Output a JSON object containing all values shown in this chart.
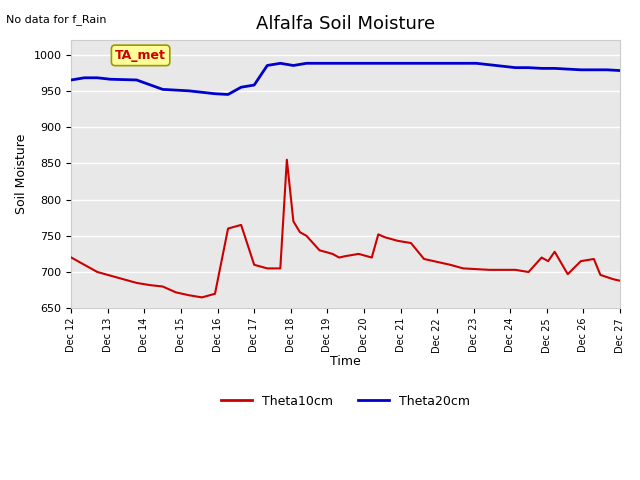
{
  "title": "Alfalfa Soil Moisture",
  "xlabel": "Time",
  "ylabel": "Soil Moisture",
  "top_left_text": "No data for f_Rain",
  "annotation_box": "TA_met",
  "ylim": [
    650,
    1020
  ],
  "yticks": [
    650,
    700,
    750,
    800,
    850,
    900,
    950,
    1000
  ],
  "background_color": "#e8e8e8",
  "line1_color": "#cc0000",
  "line2_color": "#0000cc",
  "legend_entries": [
    "Theta10cm",
    "Theta20cm"
  ],
  "xtick_labels": [
    "Dec 12",
    "Dec 13",
    "Dec 14",
    "Dec 15",
    "Dec 16",
    "Dec 17",
    "Dec 18",
    "Dec 19",
    "Dec 20",
    "Dec 21",
    "Dec 22",
    "Dec 23",
    "Dec 24",
    "Dec 25",
    "Dec 26",
    "Dec 27"
  ],
  "theta10_x": [
    0,
    0.1,
    0.2,
    0.3,
    0.4,
    0.5,
    0.6,
    0.7,
    0.8,
    0.9,
    1.0,
    1.1,
    1.2,
    1.3,
    1.4,
    1.5,
    1.6,
    1.65,
    1.7,
    1.75,
    1.8,
    1.9,
    2.0,
    2.05,
    2.1,
    2.2,
    2.3,
    2.35,
    2.4,
    2.5,
    2.6,
    2.7,
    2.8,
    2.85,
    2.9,
    3.0,
    3.1,
    3.2,
    3.3,
    3.4,
    3.5,
    3.6,
    3.65,
    3.7,
    3.8,
    3.9,
    4.0,
    4.05,
    4.1,
    4.15,
    4.2
  ],
  "theta10_y": [
    720,
    710,
    700,
    695,
    690,
    685,
    682,
    680,
    672,
    668,
    665,
    670,
    760,
    765,
    710,
    705,
    705,
    855,
    770,
    755,
    750,
    730,
    725,
    720,
    722,
    725,
    720,
    752,
    748,
    743,
    740,
    718,
    714,
    712,
    710,
    705,
    704,
    703,
    703,
    703,
    700,
    720,
    715,
    728,
    697,
    715,
    718,
    696,
    693,
    690,
    688
  ],
  "theta20_x": [
    0,
    0.1,
    0.2,
    0.3,
    0.5,
    0.7,
    0.9,
    1.0,
    1.1,
    1.2,
    1.3,
    1.4,
    1.5,
    1.6,
    1.7,
    1.8,
    1.9,
    2.0,
    2.1,
    2.2,
    2.3,
    2.4,
    2.5,
    2.6,
    2.7,
    2.8,
    2.9,
    3.0,
    3.1,
    3.2,
    3.3,
    3.4,
    3.5,
    3.6,
    3.7,
    3.8,
    3.9,
    4.0,
    4.1,
    4.2
  ],
  "theta20_y": [
    965,
    968,
    968,
    966,
    965,
    952,
    950,
    948,
    946,
    945,
    955,
    958,
    985,
    988,
    985,
    988,
    988,
    988,
    988,
    988,
    988,
    988,
    988,
    988,
    988,
    988,
    988,
    988,
    988,
    986,
    984,
    982,
    982,
    981,
    981,
    980,
    979,
    979,
    979,
    978
  ]
}
